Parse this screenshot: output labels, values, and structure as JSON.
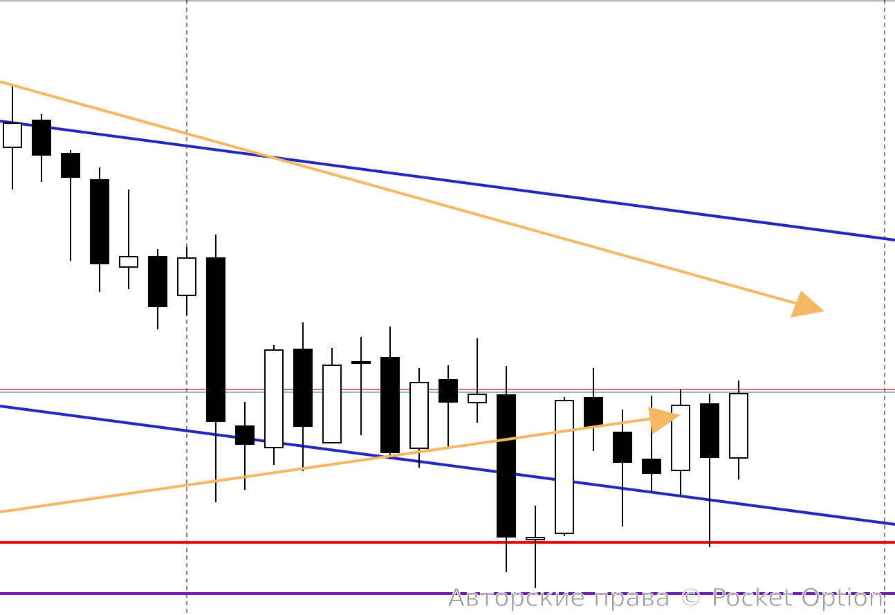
{
  "chart_data": {
    "type": "candlestick",
    "watermark": "Авторские права © Pocket Option",
    "ylim": [
      0,
      889
    ],
    "up_color": "#ffffff",
    "down_color": "#000000",
    "open": [
      676,
      715,
      667,
      629,
      503,
      518,
      462,
      516,
      273,
      242,
      384,
      249,
      366,
      372,
      241,
      340,
      307,
      318,
      109,
      118,
      314,
      264,
      225,
      209,
      305,
      227
    ],
    "high": [
      766,
      724,
      672,
      647,
      615,
      529,
      532,
      550,
      308,
      390,
      423,
      386,
      402,
      417,
      357,
      361,
      400,
      360,
      158,
      315,
      357,
      297,
      317,
      326,
      320,
      339
    ],
    "low": [
      615,
      626,
      512,
      467,
      471,
      413,
      433,
      163,
      181,
      217,
      208,
      249,
      260,
      225,
      213,
      243,
      278,
      62,
      39,
      114,
      237,
      128,
      178,
      173,
      98,
      196
    ],
    "close": [
      711,
      665,
      633,
      508,
      518,
      446,
      516,
      280,
      247,
      383,
      273,
      361,
      366,
      235,
      336,
      308,
      319,
      113,
      112,
      310,
      273,
      221,
      205,
      303,
      228,
      320
    ]
  }
}
